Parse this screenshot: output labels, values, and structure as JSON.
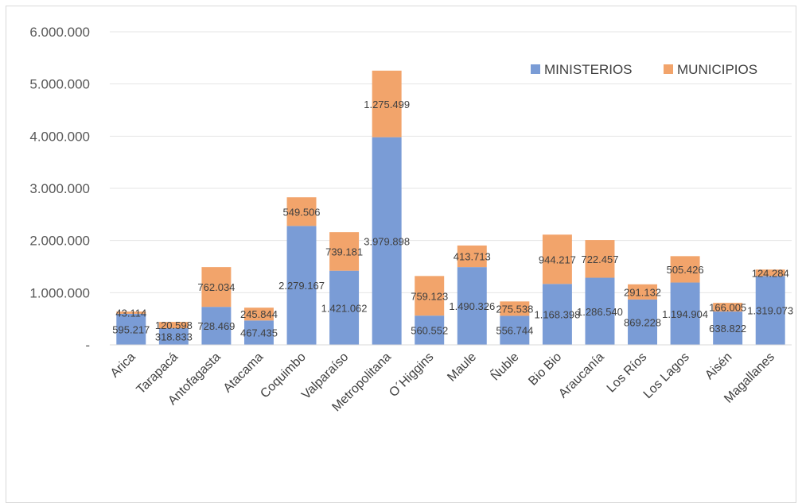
{
  "chart_data": {
    "type": "bar",
    "stacked": true,
    "categories": [
      "Arica",
      "Tarapacá",
      "Antofagasta",
      "Atacama",
      "Coquimbo",
      "Valparaíso",
      "Metropolitana",
      "O´Higgins",
      "Maule",
      "Ñuble",
      "Bio Bio",
      "Araucanía",
      "Los Ríos",
      "Los Lagos",
      "Aisén",
      "Magallanes"
    ],
    "series": [
      {
        "name": "MINISTERIOS",
        "color": "#7a9cd6",
        "values": [
          595217,
          318833,
          728469,
          467435,
          2279167,
          1421062,
          3979898,
          560552,
          1490326,
          556744,
          1168398,
          1286540,
          869228,
          1194904,
          638822,
          1319073
        ],
        "labels": [
          "595.217",
          "318.833",
          "728.469",
          "467.435",
          "2.279.167",
          "1.421.062",
          "3.979.898",
          "560.552",
          "1.490.326",
          "556.744",
          "1.168.398",
          "1.286.540",
          "869.228",
          "1.194.904",
          "638.822",
          "1.319.073"
        ]
      },
      {
        "name": "MUNICIPIOS",
        "color": "#f2a46b",
        "values": [
          43114,
          120598,
          762034,
          245844,
          549506,
          739181,
          1275499,
          759123,
          413713,
          275538,
          944217,
          722457,
          291132,
          505426,
          166005,
          124284
        ],
        "labels": [
          "43.114",
          "120.598",
          "762.034",
          "245.844",
          "549.506",
          "739.181",
          "1.275.499",
          "759.123",
          "413.713",
          "275.538",
          "944.217",
          "722.457",
          "291.132",
          "505.426",
          "166.005",
          "124.284"
        ]
      }
    ],
    "ylim": [
      0,
      6000000
    ],
    "yticks": [
      0,
      1000000,
      2000000,
      3000000,
      4000000,
      5000000,
      6000000
    ],
    "ytick_labels": [
      "-",
      "1.000.000",
      "2.000.000",
      "3.000.000",
      "4.000.000",
      "5.000.000",
      "6.000.000"
    ],
    "grid": true,
    "legend_position": "top-right"
  }
}
